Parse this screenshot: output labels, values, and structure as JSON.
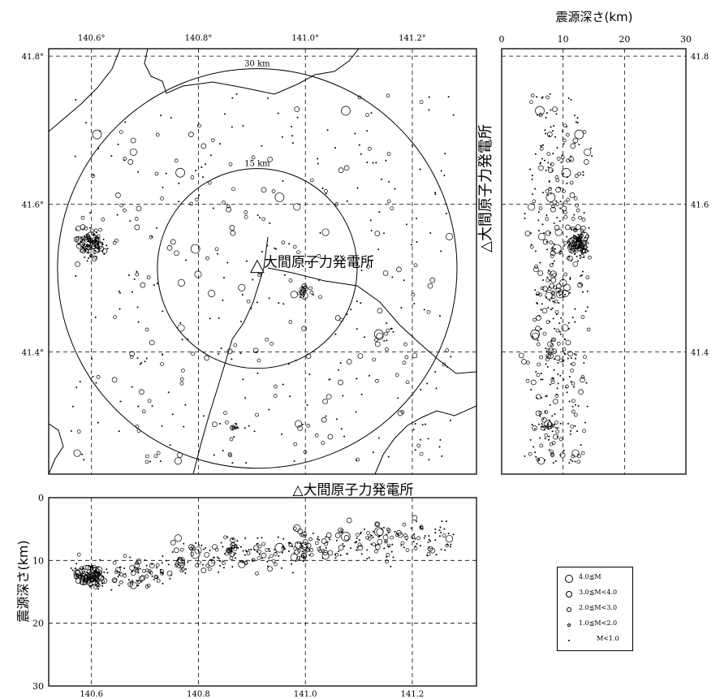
{
  "chart_data": [
    {
      "type": "scatter",
      "panel": "map",
      "x_ticks": [
        "140.6°",
        "140.8°",
        "141.0°",
        "141.2°"
      ],
      "y_ticks": [
        "41.8°",
        "41.6°",
        "41.4°"
      ],
      "xlim": [
        140.52,
        141.32
      ],
      "ylim": [
        41.235,
        41.81
      ],
      "grid": true,
      "circle_labels": [
        "30 km",
        "15 km"
      ],
      "plant_label": "大間原子力発電所",
      "plant": {
        "lon": 140.91,
        "lat": 41.513
      },
      "clusters": [
        {
          "lon": 140.6,
          "lat": 41.545,
          "count": 130,
          "spread": 0.022
        },
        {
          "lon": 141.0,
          "lat": 41.48,
          "count": 18,
          "spread": 0.01
        },
        {
          "lon": 140.87,
          "lat": 41.3,
          "count": 10,
          "spread": 0.006
        },
        {
          "lon": 141.15,
          "lat": 41.42,
          "count": 12,
          "spread": 0.02
        }
      ]
    },
    {
      "type": "scatter",
      "panel": "depth-vs-latitude",
      "title": "震源深さ(km)",
      "side_label": "△大間原子力発電所",
      "x_ticks": [
        "0",
        "10",
        "20",
        "30"
      ],
      "y_ticks": [
        "41.8",
        "41.6",
        "41.4"
      ],
      "xlim": [
        0,
        30
      ],
      "ylim": [
        41.235,
        41.81
      ],
      "grid": true
    },
    {
      "type": "scatter",
      "panel": "depth-vs-longitude",
      "ylabel": "震源深さ(km)",
      "top_label": "△大間原子力発電所",
      "x_ticks": [
        "140.6",
        "140.8",
        "141.0",
        "141.2"
      ],
      "y_ticks": [
        "0",
        "10",
        "20",
        "30"
      ],
      "xlim": [
        140.52,
        141.32
      ],
      "ylim": [
        0,
        30
      ],
      "grid": true
    }
  ],
  "legend": [
    {
      "label": "4.0≦M",
      "size": 10
    },
    {
      "label": "3.0≦M<4.0",
      "size": 8
    },
    {
      "label": "2.0≦M<3.0",
      "size": 6
    },
    {
      "label": "1.0≦M<2.0",
      "size": 4
    },
    {
      "label": "M<1.0",
      "size": 2
    }
  ]
}
